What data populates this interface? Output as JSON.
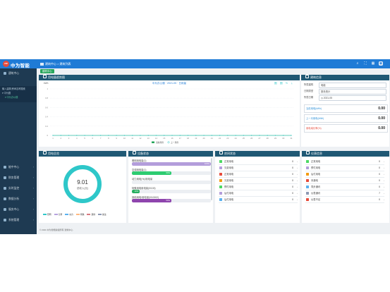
{
  "header": {
    "brand": "中为智能",
    "breadcrumb": "建筑中心 > 建筑列表",
    "colors": {
      "bar": "#1f7bd6",
      "logo": "#e64a3b",
      "sidebar": "#1e3a52",
      "panel_head": "#1f5874"
    }
  },
  "sidebar": {
    "top_item": "建筑中心",
    "tree": [
      "输入建筑/房间名称搜索",
      "▾ 中为园",
      "  ▾ 中为办公楼"
    ],
    "items": [
      {
        "label": "能中中心",
        "icon": "chart-icon"
      },
      {
        "label": "财务管理",
        "icon": "wallet-icon"
      },
      {
        "label": "实时监控",
        "icon": "monitor-icon"
      },
      {
        "label": "数据分析",
        "icon": "analysis-icon"
      },
      {
        "label": "服务中心",
        "icon": "service-icon"
      },
      {
        "label": "系统管理",
        "icon": "gear-icon"
      }
    ]
  },
  "tab": {
    "label": "建筑中心"
  },
  "energy_panel": {
    "title": "用电量趋势图",
    "unit": "kWh",
    "subtitle": "中为办公楼 · 2021-05 · 日用量",
    "tools": [
      "圈",
      "圈",
      "↻",
      "⤓"
    ],
    "legend_current": "当前月份",
    "legend_previous": "上一月份"
  },
  "chart_data": {
    "type": "line",
    "x": [
      1,
      2,
      3,
      4,
      5,
      6,
      7,
      8,
      9,
      10,
      11,
      12,
      13,
      14,
      15,
      16,
      17,
      18,
      19,
      20,
      21,
      22,
      23,
      24,
      25,
      26,
      27,
      28,
      29,
      30,
      31
    ],
    "series": [
      {
        "name": "当前月份",
        "values": [
          0,
          0,
          0,
          0,
          0,
          0,
          0,
          0,
          0,
          0,
          0,
          0,
          0,
          0,
          0,
          0,
          0,
          0,
          0,
          0,
          0,
          0,
          0,
          0,
          0,
          0,
          0,
          0,
          0,
          0,
          0
        ]
      },
      {
        "name": "上一月份",
        "values": [
          0,
          0,
          0,
          0,
          0,
          0,
          0,
          0,
          0,
          0,
          0,
          0,
          0,
          0,
          0,
          0,
          0,
          0,
          0,
          0,
          0,
          0,
          0,
          0,
          0,
          0,
          0,
          0,
          0,
          0,
          0
        ]
      }
    ],
    "y_ticks": [
      "1",
      "0.8",
      "0.6",
      "0.4",
      "0.2",
      "0"
    ],
    "ylim": [
      0,
      1
    ],
    "ylabel": "kWh",
    "grid": true,
    "legend": "bottom"
  },
  "info_panel": {
    "title": "建筑信息",
    "fields": [
      {
        "label": "所属建筑",
        "value": "电能"
      },
      {
        "label": "日期类型",
        "value": "按月统计"
      },
      {
        "label": "所属日期",
        "value": "2021-05"
      }
    ],
    "values": [
      {
        "label": "当前用电(kWh)",
        "value": "0.00"
      },
      {
        "label": "上一月用电(kWh)",
        "value": "0.00"
      },
      {
        "label": "用电增长率(%)",
        "value": "0.00"
      }
    ]
  },
  "total_panel": {
    "title": "用电总览",
    "center_value": "9.01",
    "center_label": "总收入(元)",
    "legend": [
      {
        "label": "照明",
        "color": "#2ec7c9"
      },
      {
        "label": "空调",
        "color": "#b6a2de"
      },
      {
        "label": "动力",
        "color": "#5ab1ef"
      },
      {
        "label": "特殊",
        "color": "#ffb980"
      },
      {
        "label": "其他",
        "color": "#d87a80"
      },
      {
        "label": "备注",
        "color": "#8d98b3"
      }
    ]
  },
  "device_panel": {
    "title": "设备状态",
    "rows": [
      {
        "label": "照明用电量(1)",
        "percent": 100,
        "pct_label": "100%",
        "color": "#b39ddb"
      },
      {
        "label": "空调用电量(1)",
        "percent": 50,
        "pct_label": "50%",
        "color": "#2ecc71"
      },
      {
        "label": "动力用电(%)/用电量",
        "percent": 0,
        "pct_label": "",
        "color": "#5ab1ef"
      },
      {
        "label": "特殊用电用电量(0/100)",
        "percent": 10,
        "pct_label": "10%",
        "color": "#27ae60"
      },
      {
        "label": "其他用电/用电量(0/10002)",
        "percent": 50,
        "pct_label": "50%",
        "color": "#8e44ad"
      }
    ]
  },
  "room_panel": {
    "title": "房间状态",
    "rows": [
      {
        "label": "正常用电",
        "value": "0",
        "color": "#4cd964"
      },
      {
        "label": "欠费用电",
        "value": "0",
        "color": "#b39ddb"
      },
      {
        "label": "正常用电",
        "value": "0",
        "color": "#e74c3c"
      },
      {
        "label": "欠费用电",
        "value": "0",
        "color": "#f39c12"
      },
      {
        "label": "预付用电",
        "value": "0",
        "color": "#4cd964"
      },
      {
        "label": "后付用电",
        "value": "0",
        "color": "#b39ddb"
      },
      {
        "label": "后付用电",
        "value": "0",
        "color": "#5ab1ef"
      }
    ]
  },
  "meter_panel": {
    "title": "仪表信息",
    "rows": [
      {
        "label": "正常用电",
        "value": "0",
        "color": "#4cd964"
      },
      {
        "label": "预付用电",
        "value": "0",
        "color": "#b39ddb"
      },
      {
        "label": "后付用电",
        "value": "0",
        "color": "#f39c12"
      },
      {
        "label": "未通电",
        "value": "0",
        "color": "#e74c3c"
      },
      {
        "label": "同步通讯",
        "value": "0",
        "color": "#5ab1ef"
      },
      {
        "label": "仪表通讯",
        "value": "7",
        "color": "#8d98b3"
      },
      {
        "label": "仪表不足",
        "value": "0",
        "color": "#e74c3c"
      }
    ]
  },
  "footer": {
    "text": "© 2021 中为智能版权所有 建筑中心"
  }
}
